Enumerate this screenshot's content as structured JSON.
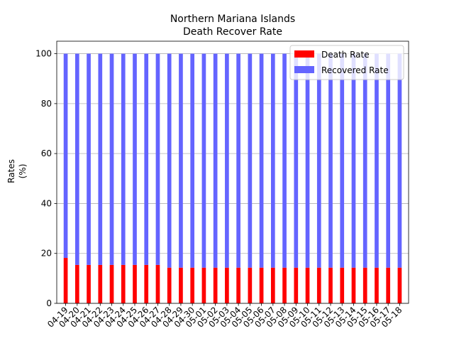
{
  "chart_data": {
    "type": "bar",
    "stacked": true,
    "title": "Northern Mariana Islands",
    "subtitle": "Death Recover Rate",
    "xlabel": "",
    "ylabel": "Rates",
    "ylabel_unit": "(%)",
    "ylim": [
      0,
      105
    ],
    "yticks": [
      0,
      20,
      40,
      60,
      80,
      100
    ],
    "grid": "y",
    "legend_position": "top-right",
    "categories": [
      "04-19",
      "04-20",
      "04-21",
      "04-22",
      "04-23",
      "04-24",
      "04-25",
      "04-26",
      "04-27",
      "04-28",
      "04-29",
      "04-30",
      "05-01",
      "05-02",
      "05-03",
      "05-04",
      "05-05",
      "05-06",
      "05-07",
      "05-08",
      "05-09",
      "05-10",
      "05-11",
      "05-12",
      "05-13",
      "05-14",
      "05-15",
      "05-16",
      "05-17",
      "05-18"
    ],
    "series": [
      {
        "name": "Death Rate",
        "color": "#ff0000",
        "values": [
          18.2,
          15.4,
          15.4,
          15.4,
          15.4,
          15.4,
          15.4,
          15.4,
          15.4,
          14.3,
          14.3,
          14.3,
          14.3,
          14.3,
          14.3,
          14.3,
          14.3,
          14.3,
          14.3,
          14.3,
          14.3,
          14.3,
          14.3,
          14.3,
          14.3,
          14.3,
          14.3,
          14.3,
          14.3,
          14.3
        ]
      },
      {
        "name": "Recovered Rate",
        "color": "#6464ff",
        "values": [
          81.8,
          84.6,
          84.6,
          84.6,
          84.6,
          84.6,
          84.6,
          84.6,
          84.6,
          85.7,
          85.7,
          85.7,
          85.7,
          85.7,
          85.7,
          85.7,
          85.7,
          85.7,
          85.7,
          85.7,
          85.7,
          85.7,
          85.7,
          85.7,
          85.7,
          85.7,
          85.7,
          85.7,
          85.7,
          85.7
        ]
      }
    ]
  }
}
